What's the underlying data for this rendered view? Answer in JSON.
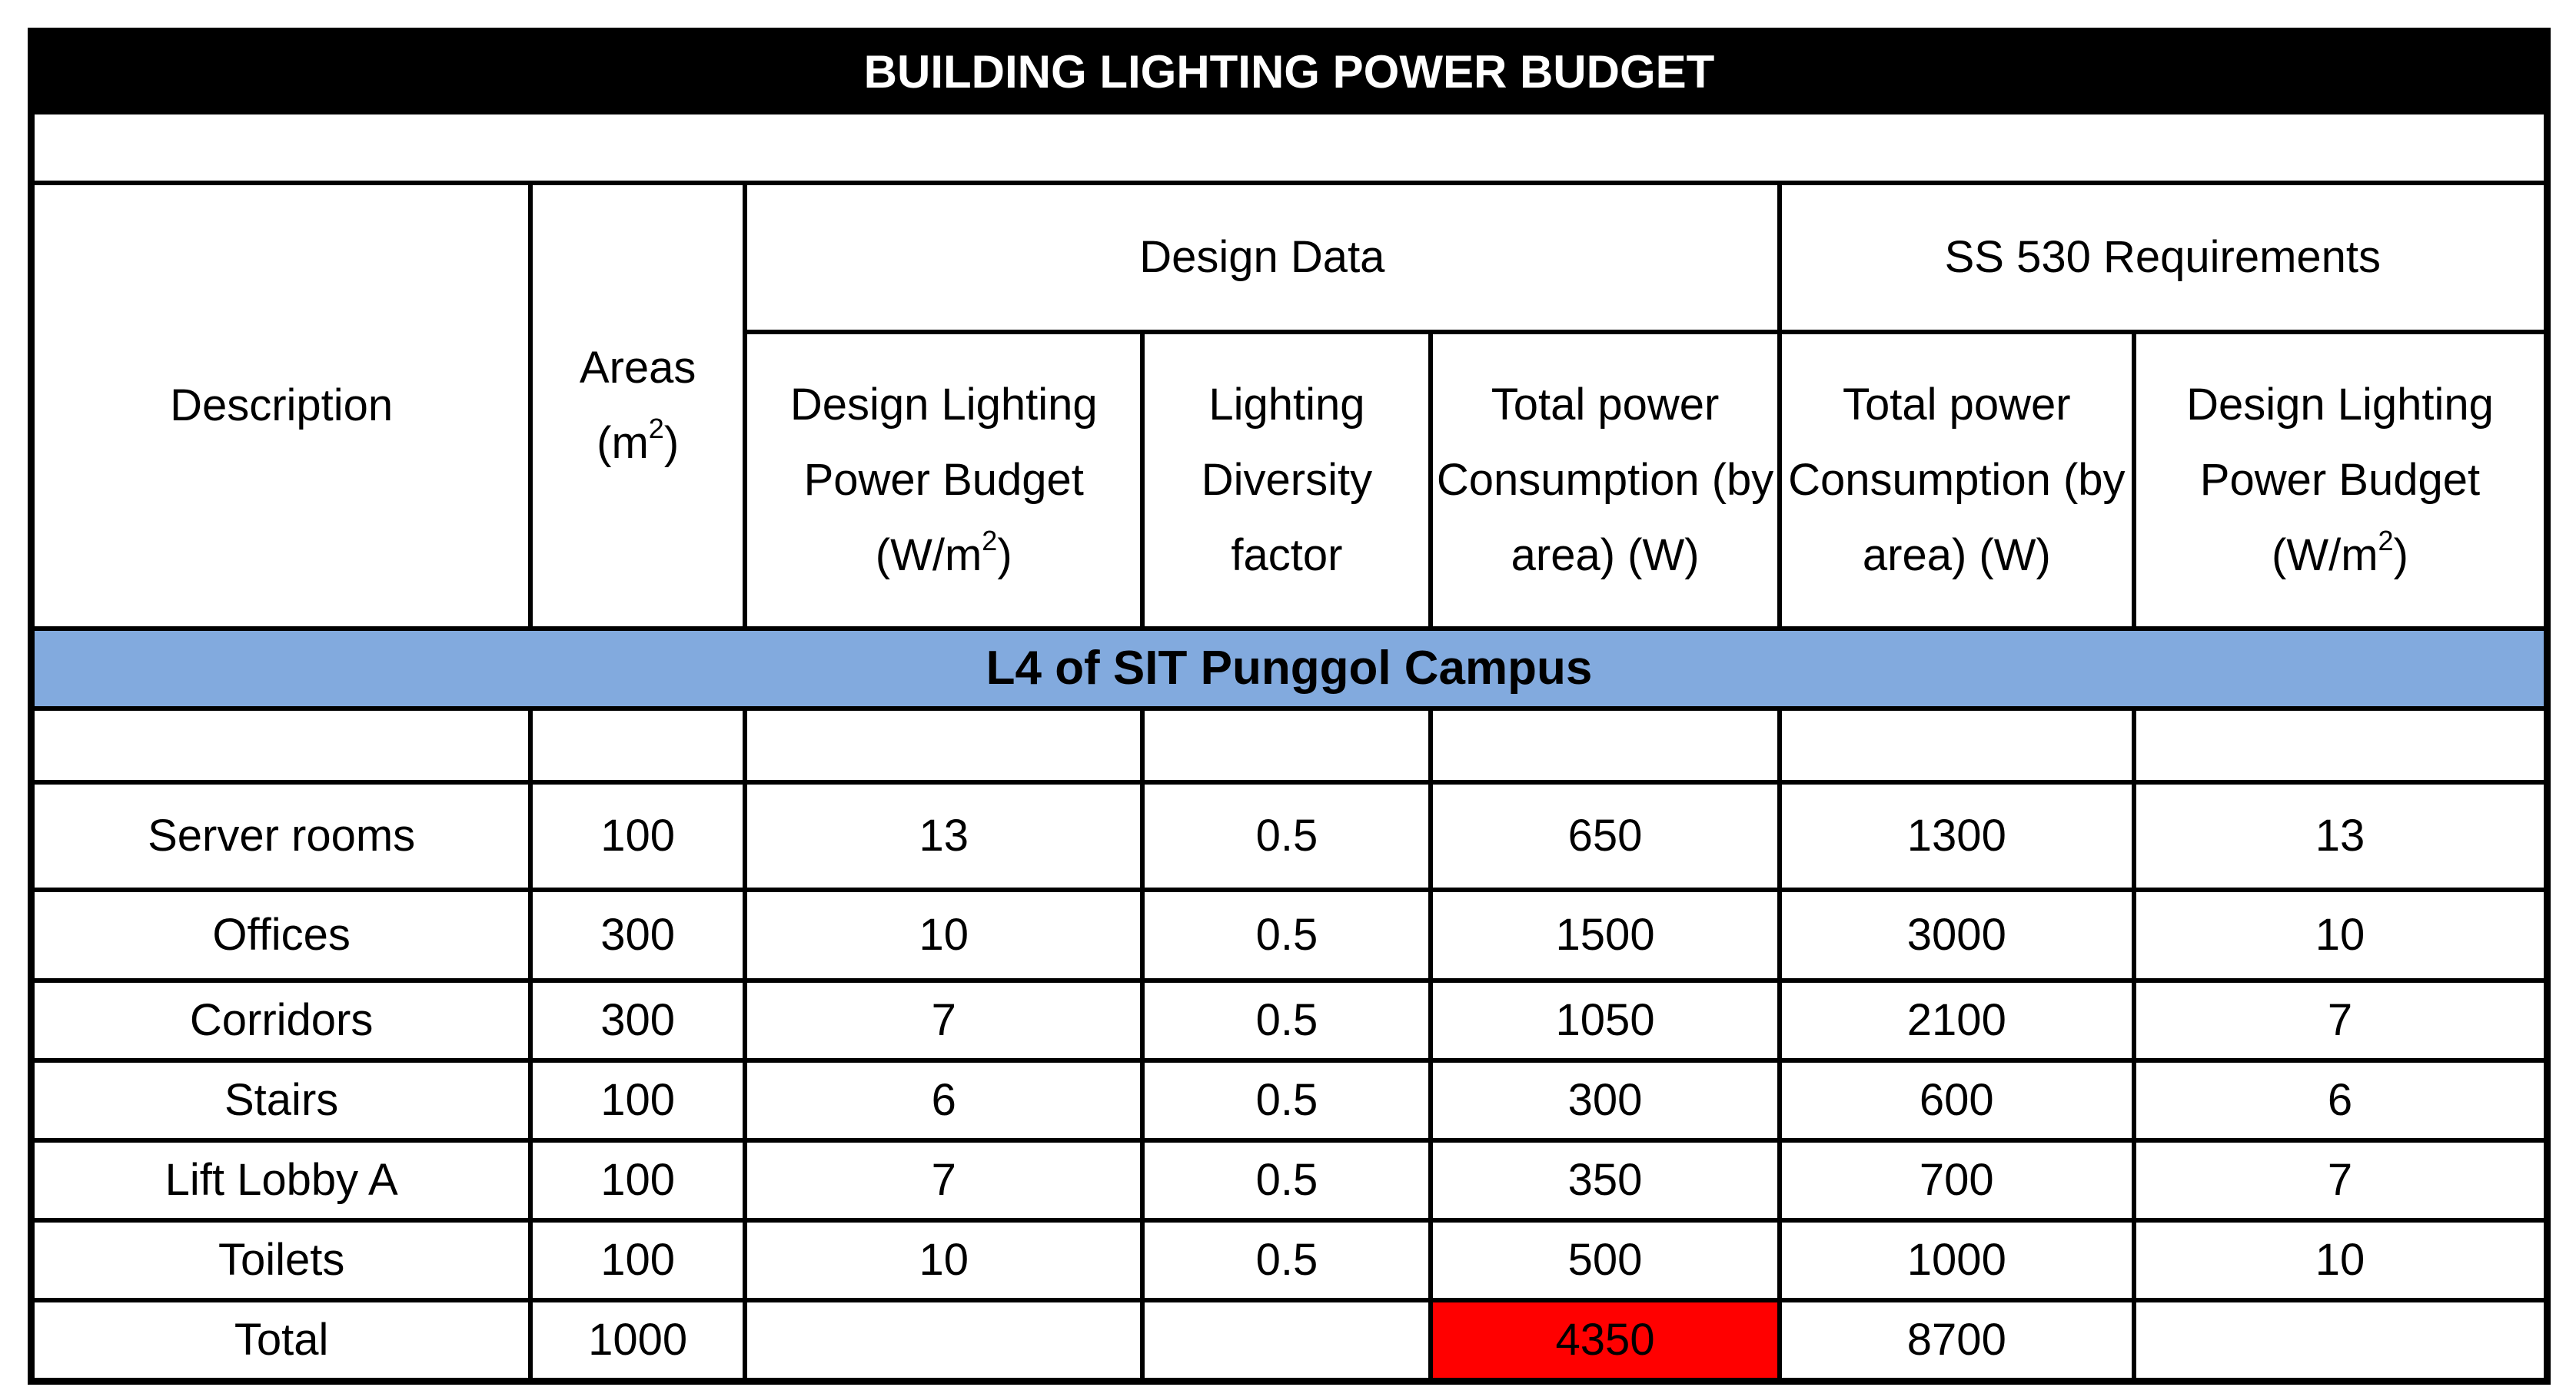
{
  "table": {
    "title": "BUILDING LIGHTING POWER BUDGET",
    "headers": {
      "description": "Description",
      "areas": "Areas",
      "areas_unit_open": "(m",
      "superscript": "2",
      "unit_close": ")",
      "design_data_group": "Design Data",
      "ss530_group": "SS 530 Requirements",
      "design_lpb": "Design Lighting Power Budget",
      "wm_open": "(W/m",
      "lighting_diversity": "Lighting Diversity factor",
      "total_power": "Total power Consumption (by area) (W)",
      "ss_total_power": "Total power Consumption (by area) (W)",
      "ss_design_lpb": "Design Lighting Power Budget"
    },
    "section_label": "L4 of SIT Punggol Campus",
    "rows": [
      {
        "description": "Server rooms",
        "area": "100",
        "design_lpb": "13",
        "diversity": "0.5",
        "total_power": "650",
        "ss_total_power": "1300",
        "ss_lpb": "13"
      },
      {
        "description": "Offices",
        "area": "300",
        "design_lpb": "10",
        "diversity": "0.5",
        "total_power": "1500",
        "ss_total_power": "3000",
        "ss_lpb": "10"
      },
      {
        "description": "Corridors",
        "area": "300",
        "design_lpb": "7",
        "diversity": "0.5",
        "total_power": "1050",
        "ss_total_power": "2100",
        "ss_lpb": "7"
      },
      {
        "description": "Stairs",
        "area": "100",
        "design_lpb": "6",
        "diversity": "0.5",
        "total_power": "300",
        "ss_total_power": "600",
        "ss_lpb": "6"
      },
      {
        "description": "Lift Lobby A",
        "area": "100",
        "design_lpb": "7",
        "diversity": "0.5",
        "total_power": "350",
        "ss_total_power": "700",
        "ss_lpb": "7"
      },
      {
        "description": "Toilets",
        "area": "100",
        "design_lpb": "10",
        "diversity": "0.5",
        "total_power": "500",
        "ss_total_power": "1000",
        "ss_lpb": "10"
      }
    ],
    "total_row": {
      "description": "Total",
      "area": "1000",
      "total_power": "4350",
      "ss_total_power": "8700"
    },
    "colors": {
      "title_bg": "#000000",
      "section_bg": "#82aade",
      "highlight": "#ff0000"
    }
  }
}
